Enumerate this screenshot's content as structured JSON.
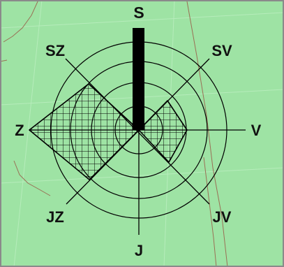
{
  "colors": {
    "background": "#9ee3a4",
    "contour": "#9a6f55",
    "grid": "#000000",
    "frame": "#8a8a8a"
  },
  "directions": {
    "n": "S",
    "ne": "SV",
    "e": "V",
    "se": "JV",
    "s": "J",
    "sw": "JZ",
    "w": "Z",
    "nw": "SZ"
  },
  "rose": {
    "ring_count": 4,
    "hatched_sectors": [
      "Z",
      "SZ",
      "JZ",
      "SV",
      "V",
      "JV"
    ],
    "dominant_direction": "S"
  }
}
